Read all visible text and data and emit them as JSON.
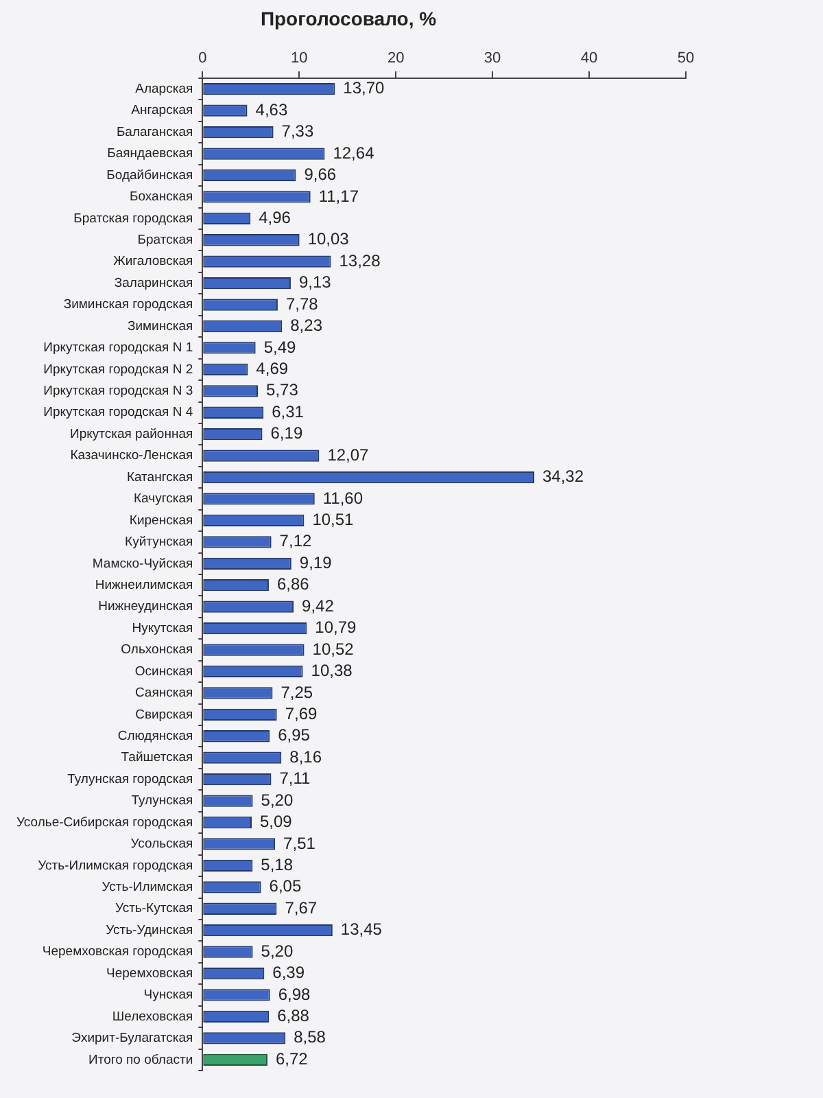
{
  "chart_data": {
    "type": "bar",
    "orientation": "horizontal",
    "title": "Проголосовало, %",
    "categories": [
      "Аларская",
      "Ангарская",
      "Балаганская",
      "Баяндаевская",
      "Бодайбинская",
      "Боханская",
      "Братская городская",
      "Братская",
      "Жигаловская",
      "Заларинская",
      "Зиминская городская",
      "Зиминская",
      "Иркутская городская N 1",
      "Иркутская городская N 2",
      "Иркутская городская N 3",
      "Иркутская городская N 4",
      "Иркутская районная",
      "Казачинско-Ленская",
      "Катангская",
      "Качугская",
      "Киренская",
      "Куйтунская",
      "Мамско-Чуйская",
      "Нижнеилимская",
      "Нижнеудинская",
      "Нукутская",
      "Ольхонская",
      "Осинская",
      "Саянская",
      "Свирская",
      "Слюдянская",
      "Тайшетская",
      "Тулунская городская",
      "Тулунская",
      "Усолье-Сибирская городская",
      "Усольская",
      "Усть-Илимская городская",
      "Усть-Илимская",
      "Усть-Кутская",
      "Усть-Удинская",
      "Черемховская городская",
      "Черемховская",
      "Чунская",
      "Шелеховская",
      "Эхирит-Булагатская",
      "Итого по области"
    ],
    "values": [
      13.7,
      4.63,
      7.33,
      12.64,
      9.66,
      11.17,
      4.96,
      10.03,
      13.28,
      9.13,
      7.78,
      8.23,
      5.49,
      4.69,
      5.73,
      6.31,
      6.19,
      12.07,
      34.32,
      11.6,
      10.51,
      7.12,
      9.19,
      6.86,
      9.42,
      10.79,
      10.52,
      10.38,
      7.25,
      7.69,
      6.95,
      8.16,
      7.11,
      5.2,
      5.09,
      7.51,
      5.18,
      6.05,
      7.67,
      13.45,
      5.2,
      6.39,
      6.98,
      6.88,
      8.58,
      6.72
    ],
    "value_labels": [
      "13,70",
      "4,63",
      "7,33",
      "12,64",
      "9,66",
      "11,17",
      "4,96",
      "10,03",
      "13,28",
      "9,13",
      "7,78",
      "8,23",
      "5,49",
      "4,69",
      "5,73",
      "6,31",
      "6,19",
      "12,07",
      "34,32",
      "11,60",
      "10,51",
      "7,12",
      "9,19",
      "6,86",
      "9,42",
      "10,79",
      "10,52",
      "10,38",
      "7,25",
      "7,69",
      "6,95",
      "8,16",
      "7,11",
      "5,20",
      "5,09",
      "7,51",
      "5,18",
      "6,05",
      "7,67",
      "13,45",
      "5,20",
      "6,39",
      "6,98",
      "6,88",
      "8,58",
      "6,72"
    ],
    "colors": [
      "#3f66c2",
      "#3f66c2",
      "#3f66c2",
      "#3f66c2",
      "#3f66c2",
      "#3f66c2",
      "#3f66c2",
      "#3f66c2",
      "#3f66c2",
      "#3f66c2",
      "#3f66c2",
      "#3f66c2",
      "#3f66c2",
      "#3f66c2",
      "#3f66c2",
      "#3f66c2",
      "#3f66c2",
      "#3f66c2",
      "#3f66c2",
      "#3f66c2",
      "#3f66c2",
      "#3f66c2",
      "#3f66c2",
      "#3f66c2",
      "#3f66c2",
      "#3f66c2",
      "#3f66c2",
      "#3f66c2",
      "#3f66c2",
      "#3f66c2",
      "#3f66c2",
      "#3f66c2",
      "#3f66c2",
      "#3f66c2",
      "#3f66c2",
      "#3f66c2",
      "#3f66c2",
      "#3f66c2",
      "#3f66c2",
      "#3f66c2",
      "#3f66c2",
      "#3f66c2",
      "#3f66c2",
      "#3f66c2",
      "#3f66c2",
      "#3aa26a"
    ],
    "xlim": [
      0,
      50
    ],
    "xticks": [
      0,
      10,
      20,
      30,
      40,
      50
    ]
  }
}
